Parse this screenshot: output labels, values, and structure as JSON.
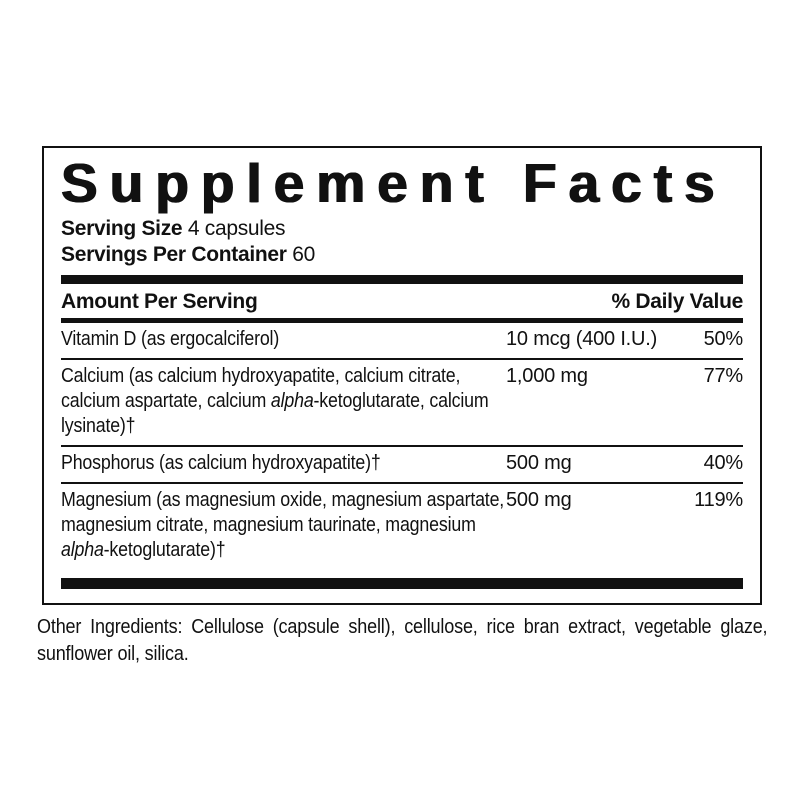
{
  "colors": {
    "ink": "#111111",
    "background": "#ffffff"
  },
  "label": {
    "title": "Supplement Facts",
    "serving_size": {
      "label": "Serving Size",
      "value": "4 capsules"
    },
    "servings_per_container": {
      "label": "Servings Per Container",
      "value": "60"
    },
    "columns": {
      "amount": "Amount Per Serving",
      "daily_value": "% Daily Value"
    },
    "nutrients": [
      {
        "name_segments": [
          {
            "text": "Vitamin D (as ergocalciferol)",
            "italic": false
          }
        ],
        "amount": "10 mcg (400 I.U.)",
        "daily_value": "50%"
      },
      {
        "name_segments": [
          {
            "text": "Calcium (as calcium hydroxyapatite, calcium citrate, calcium aspartate, calcium ",
            "italic": false
          },
          {
            "text": "alpha",
            "italic": true
          },
          {
            "text": "-ketoglutarate, calcium lysinate)†",
            "italic": false
          }
        ],
        "amount": "1,000 mg",
        "daily_value": "77%"
      },
      {
        "name_segments": [
          {
            "text": "Phosphorus (as calcium hydroxyapatite)†",
            "italic": false
          }
        ],
        "amount": "500 mg",
        "daily_value": "40%"
      },
      {
        "name_segments": [
          {
            "text": "Magnesium (as magnesium oxide, magnesium aspartate, magnesium citrate, magnesium taurinate, magnesium ",
            "italic": false
          },
          {
            "text": "alpha",
            "italic": true
          },
          {
            "text": "-ketoglutarate)†",
            "italic": false
          }
        ],
        "amount": "500 mg",
        "daily_value": "119%"
      }
    ]
  },
  "footer": {
    "other_ingredients": "Other Ingredients: Cellulose (capsule shell), cellulose, rice bran extract, vegetable glaze, sunflower oil, silica."
  }
}
